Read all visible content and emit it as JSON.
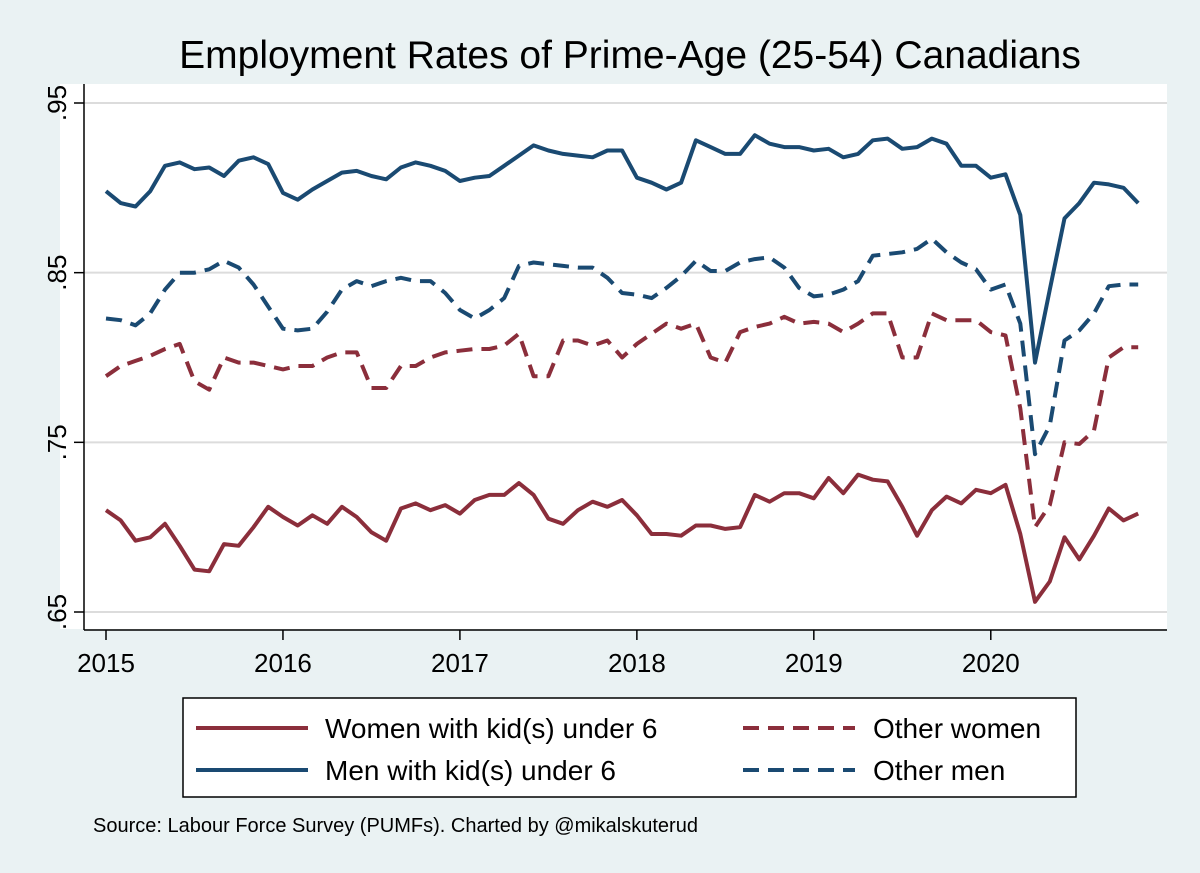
{
  "chart_data": {
    "type": "line",
    "title": "Employment Rates of Prime-Age (25-54) Canadians",
    "source": "Source: Labour Force Survey (PUMFs). Charted by @mikalskuterud",
    "y_ticks": [
      ".65",
      ".75",
      ".85",
      ".95"
    ],
    "x_ticks": [
      "2015",
      "2016",
      "2017",
      "2018",
      "2019",
      "2020"
    ],
    "ylim": [
      0.65,
      0.95
    ],
    "xlim": [
      2015.0,
      2020.9167
    ],
    "grid": true,
    "legend_position": "bottom",
    "x_start": 2015.0,
    "x_step_months": 1,
    "series": [
      {
        "name": "Women with kid(s) under 6",
        "color": "#8b2e3b",
        "dash": "solid",
        "values": [
          0.71,
          0.704,
          0.692,
          0.694,
          0.702,
          0.689,
          0.675,
          0.674,
          0.69,
          0.689,
          0.7,
          0.712,
          0.706,
          0.701,
          0.707,
          0.702,
          0.712,
          0.706,
          0.697,
          0.692,
          0.711,
          0.714,
          0.71,
          0.713,
          0.708,
          0.716,
          0.719,
          0.719,
          0.726,
          0.719,
          0.705,
          0.702,
          0.71,
          0.715,
          0.712,
          0.716,
          0.707,
          0.696,
          0.696,
          0.695,
          0.701,
          0.701,
          0.699,
          0.7,
          0.719,
          0.715,
          0.72,
          0.72,
          0.717,
          0.729,
          0.72,
          0.731,
          0.728,
          0.727,
          0.712,
          0.695,
          0.71,
          0.718,
          0.714,
          0.722,
          0.72,
          0.725,
          0.696,
          0.656,
          0.668,
          0.694,
          0.681,
          0.695,
          0.711,
          0.704,
          0.708
        ]
      },
      {
        "name": "Other women",
        "color": "#8b2e3b",
        "dash": "dashed",
        "values": [
          0.789,
          0.795,
          0.798,
          0.801,
          0.805,
          0.808,
          0.786,
          0.781,
          0.8,
          0.797,
          0.797,
          0.795,
          0.793,
          0.795,
          0.795,
          0.8,
          0.803,
          0.803,
          0.782,
          0.782,
          0.795,
          0.795,
          0.8,
          0.803,
          0.804,
          0.805,
          0.805,
          0.807,
          0.814,
          0.789,
          0.789,
          0.81,
          0.81,
          0.807,
          0.81,
          0.8,
          0.808,
          0.814,
          0.82,
          0.817,
          0.82,
          0.8,
          0.797,
          0.815,
          0.818,
          0.82,
          0.824,
          0.82,
          0.821,
          0.82,
          0.815,
          0.82,
          0.826,
          0.826,
          0.8,
          0.8,
          0.826,
          0.822,
          0.822,
          0.822,
          0.815,
          0.813,
          0.77,
          0.7,
          0.713,
          0.75,
          0.749,
          0.757,
          0.8,
          0.806,
          0.806
        ]
      },
      {
        "name": "Men with kid(s) under 6",
        "color": "#1a4a72",
        "dash": "solid",
        "values": [
          0.898,
          0.891,
          0.889,
          0.898,
          0.913,
          0.915,
          0.911,
          0.912,
          0.907,
          0.916,
          0.918,
          0.914,
          0.897,
          0.893,
          0.899,
          0.904,
          0.909,
          0.91,
          0.907,
          0.905,
          0.912,
          0.915,
          0.913,
          0.91,
          0.904,
          0.906,
          0.907,
          0.913,
          0.919,
          0.925,
          0.922,
          0.92,
          0.919,
          0.918,
          0.922,
          0.922,
          0.906,
          0.903,
          0.899,
          0.903,
          0.928,
          0.924,
          0.92,
          0.92,
          0.931,
          0.926,
          0.924,
          0.924,
          0.922,
          0.923,
          0.918,
          0.92,
          0.928,
          0.929,
          0.923,
          0.924,
          0.929,
          0.926,
          0.913,
          0.913,
          0.906,
          0.908,
          0.884,
          0.797,
          0.84,
          0.882,
          0.891,
          0.903,
          0.902,
          0.9,
          0.891
        ]
      },
      {
        "name": "Other men",
        "color": "#1a4a72",
        "dash": "dashed",
        "values": [
          0.823,
          0.822,
          0.819,
          0.826,
          0.84,
          0.85,
          0.85,
          0.852,
          0.857,
          0.853,
          0.843,
          0.83,
          0.817,
          0.816,
          0.817,
          0.827,
          0.84,
          0.845,
          0.842,
          0.845,
          0.847,
          0.845,
          0.845,
          0.838,
          0.828,
          0.823,
          0.828,
          0.835,
          0.854,
          0.856,
          0.855,
          0.854,
          0.853,
          0.853,
          0.847,
          0.838,
          0.837,
          0.835,
          0.841,
          0.848,
          0.857,
          0.851,
          0.851,
          0.856,
          0.858,
          0.859,
          0.853,
          0.841,
          0.836,
          0.837,
          0.84,
          0.845,
          0.86,
          0.861,
          0.862,
          0.864,
          0.87,
          0.862,
          0.856,
          0.852,
          0.84,
          0.843,
          0.82,
          0.743,
          0.76,
          0.81,
          0.816,
          0.826,
          0.842,
          0.843,
          0.843
        ]
      }
    ]
  }
}
